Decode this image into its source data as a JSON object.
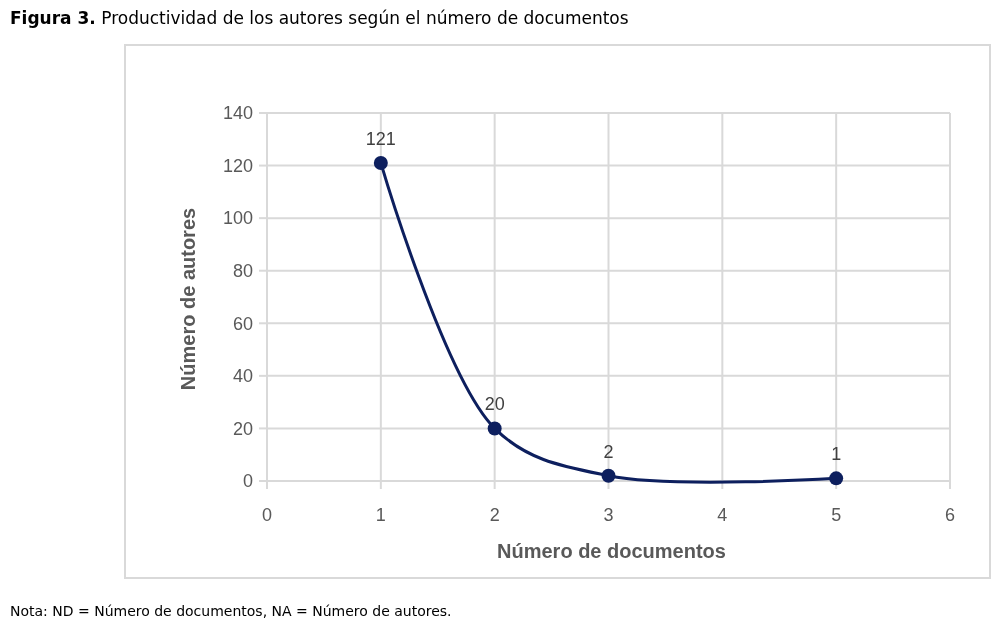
{
  "chart_data": {
    "type": "line",
    "title": "Figura 3. Productividad de los autores según el número de documentos",
    "xlabel": "Número de documentos",
    "ylabel": "Número de autores",
    "annotations": [
      "Nota: ND = Número de documentos, NA = Número de autores."
    ],
    "x": [
      1,
      2,
      3,
      5
    ],
    "series": [
      {
        "color": "#0d1f5e",
        "values": [
          121,
          20,
          2,
          1
        ]
      }
    ],
    "xlim": [
      0,
      6
    ],
    "xticks": [
      0,
      1,
      2,
      3,
      4,
      5,
      6
    ],
    "ylim": [
      0,
      140
    ],
    "yticks": [
      0,
      20,
      40,
      60,
      80,
      100,
      120,
      140
    ],
    "grid": true,
    "marker": "circle",
    "line_style": "solid",
    "data_labels": true
  }
}
